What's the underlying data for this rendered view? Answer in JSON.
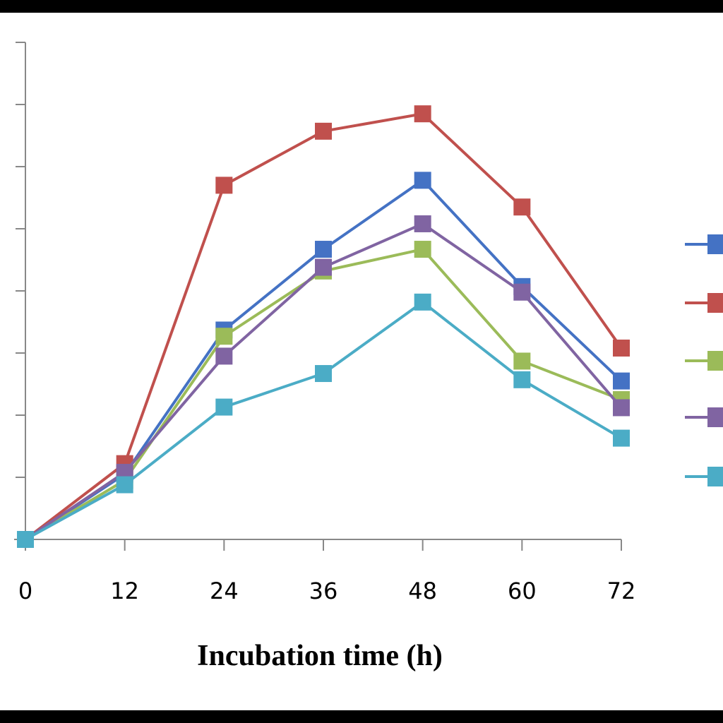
{
  "chart_data": {
    "type": "line",
    "title": "",
    "xlabel": "Incubation time (h)",
    "ylabel": "",
    "x": [
      0,
      12,
      24,
      36,
      48,
      60,
      72
    ],
    "ylim": [
      0,
      8
    ],
    "ytick_count": 8,
    "grid": false,
    "legend_position": "right",
    "series": [
      {
        "color": "#4472c4",
        "values": [
          0,
          1.05,
          3.37,
          4.67,
          5.78,
          4.07,
          2.55
        ]
      },
      {
        "color": "#c0504d",
        "values": [
          0,
          1.22,
          5.7,
          6.57,
          6.85,
          5.35,
          3.08
        ]
      },
      {
        "color": "#9bbb59",
        "values": [
          0,
          0.95,
          3.27,
          4.32,
          4.67,
          2.87,
          2.25
        ]
      },
      {
        "color": "#8064a2",
        "values": [
          0,
          1.08,
          2.95,
          4.38,
          5.08,
          3.98,
          2.12
        ]
      },
      {
        "color": "#4bacc6",
        "values": [
          0,
          0.88,
          2.13,
          2.67,
          3.82,
          2.57,
          1.63
        ]
      }
    ]
  }
}
